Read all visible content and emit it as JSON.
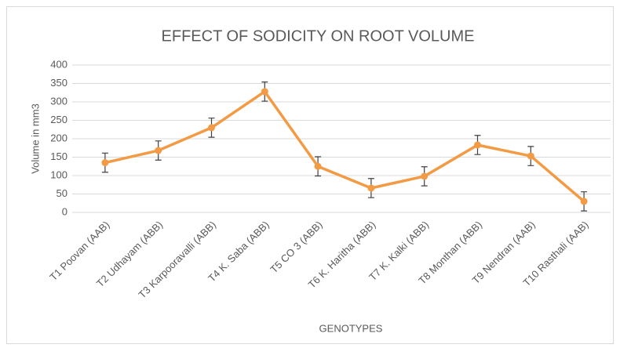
{
  "chart_data": {
    "type": "line",
    "title": "EFFECT OF SODICITY ON ROOT VOLUME",
    "x_label": "GENOTYPES",
    "y_label": "Volume in mm3",
    "categories": [
      "T1 Poovan (AAB)",
      "T2 Udhayam (ABB)",
      "T3 Karpooravalli (ABB)",
      "T4 K. Saba (ABB)",
      "T5 CO 3 (ABB)",
      "T6 K. Haritha (ABB)",
      "T7  K. Kalki (ABB)",
      "T8 Monthan (ABB)",
      "T9 Nendran (AAB)",
      "T10 Rasthali (AAB)"
    ],
    "values": [
      135,
      168,
      230,
      328,
      125,
      66,
      98,
      183,
      153,
      30
    ],
    "errors": [
      26,
      26,
      26,
      26,
      26,
      26,
      26,
      26,
      26,
      26
    ],
    "color": "#f39a45",
    "ylim": [
      0,
      400
    ],
    "yticks": [
      0,
      50,
      100,
      150,
      200,
      250,
      300,
      350,
      400
    ],
    "grid": true
  }
}
